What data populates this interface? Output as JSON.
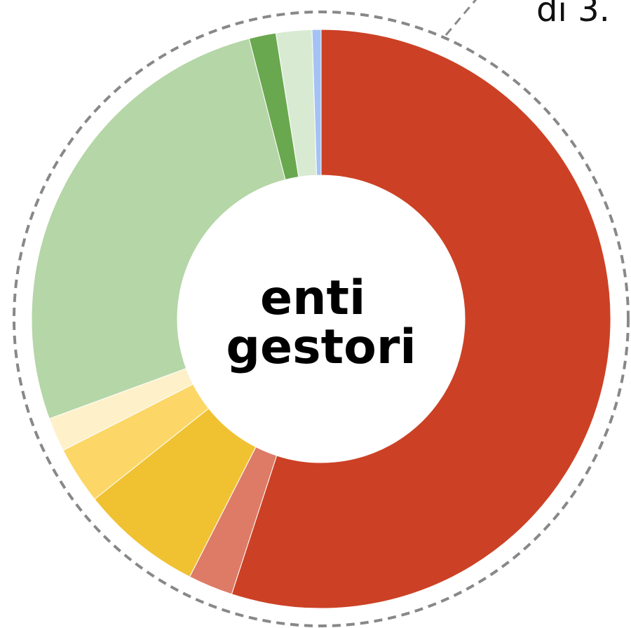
{
  "chart_data": {
    "type": "donut",
    "center_label": [
      "enti",
      "gestori"
    ],
    "annotation": "di 3.",
    "categories": [
      null,
      null,
      null,
      null,
      null,
      null,
      null,
      null,
      null
    ],
    "values": [
      55,
      2.5,
      6.8,
      3.2,
      1.9,
      26.6,
      1.5,
      2,
      0.5
    ],
    "colors": [
      "#cc4125",
      "#dd7b67",
      "#f0c232",
      "#fcd767",
      "#fef0c9",
      "#b5d6a7",
      "#6aa84f",
      "#d9ead3",
      "#a4c2f4"
    ]
  }
}
